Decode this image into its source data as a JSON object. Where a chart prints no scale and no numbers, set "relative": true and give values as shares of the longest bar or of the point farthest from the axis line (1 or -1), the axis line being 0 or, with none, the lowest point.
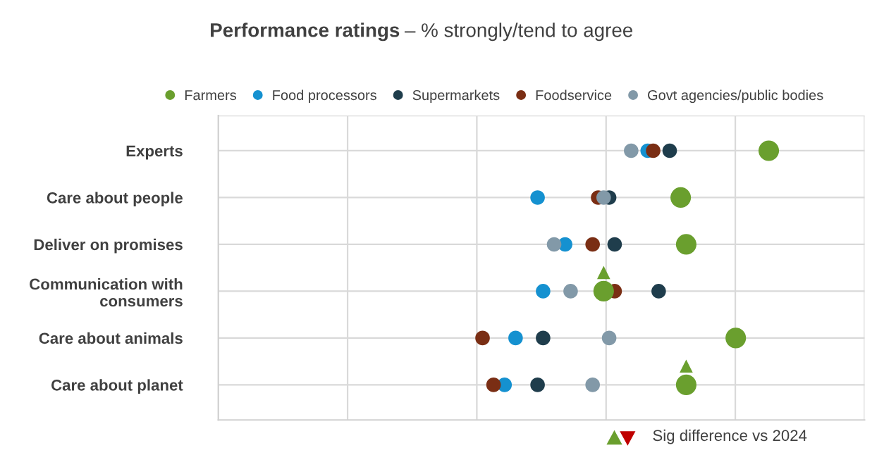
{
  "chart_data": {
    "type": "scatter",
    "title": "Performance ratings",
    "subtitle": "– % strongly/tend to agree",
    "relative": true,
    "orientation": "horizontal",
    "categories": [
      "Experts",
      "Care about people",
      "Deliver on promises",
      "Communication with\nconsumers",
      "Care about animals",
      "Care about planet"
    ],
    "series": [
      {
        "name": "Farmers",
        "color": "#6a9f2e",
        "values": [
          1,
          0.84,
          0.85,
          0.7,
          0.94,
          0.85
        ]
      },
      {
        "name": "Food processors",
        "color": "#1591d0",
        "values": [
          0.78,
          0.58,
          0.63,
          0.59,
          0.54,
          0.52
        ]
      },
      {
        "name": "Supermarkets",
        "color": "#1f3d4c",
        "values": [
          0.82,
          0.71,
          0.72,
          0.8,
          0.59,
          0.58
        ]
      },
      {
        "name": "Foodservice",
        "color": "#7a2e14",
        "values": [
          0.79,
          0.69,
          0.68,
          0.72,
          0.48,
          0.5
        ]
      },
      {
        "name": "Govt agencies/public bodies",
        "color": "#8299a8",
        "values": [
          0.75,
          0.7,
          0.61,
          0.64,
          0.71,
          0.68
        ]
      },
      {
        "color": "#6a9f2e",
        "marker": "triangle",
        "values": [
          null,
          null,
          null,
          0.7,
          null,
          0.85
        ]
      }
    ],
    "marker": "circle",
    "grid": true,
    "legend": "top",
    "annotations": [
      "Sig difference vs 2024"
    ]
  }
}
